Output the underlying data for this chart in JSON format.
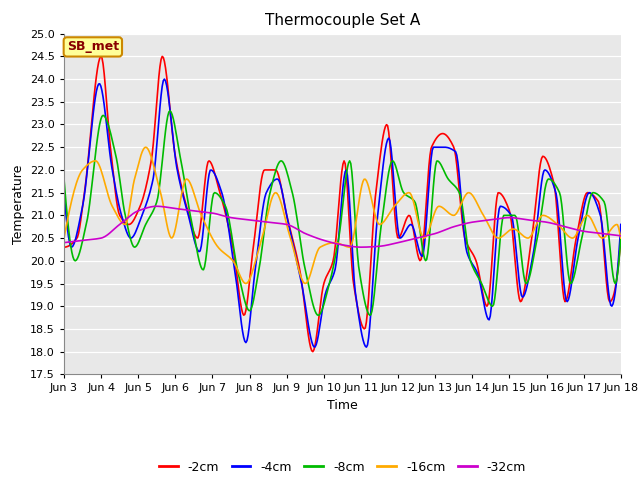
{
  "title": "Thermocouple Set A",
  "xlabel": "Time",
  "ylabel": "Temperature",
  "xlim": [
    0,
    15
  ],
  "ylim": [
    17.5,
    25.0
  ],
  "yticks": [
    17.5,
    18.0,
    18.5,
    19.0,
    19.5,
    20.0,
    20.5,
    21.0,
    21.5,
    22.0,
    22.5,
    23.0,
    23.5,
    24.0,
    24.5,
    25.0
  ],
  "xtick_labels": [
    "Jun 3",
    "Jun 4",
    "Jun 5",
    "Jun 6",
    "Jun 7",
    "Jun 8",
    "Jun 9",
    "Jun 10",
    "Jun 11",
    "Jun 12",
    "Jun 13",
    "Jun 14",
    "Jun 15",
    "Jun 16",
    "Jun 17",
    "Jun 18"
  ],
  "xtick_positions": [
    0,
    1,
    2,
    3,
    4,
    5,
    6,
    7,
    8,
    9,
    10,
    11,
    12,
    13,
    14,
    15
  ],
  "series_labels": [
    "-2cm",
    "-4cm",
    "-8cm",
    "-16cm",
    "-32cm"
  ],
  "series_colors": [
    "#ff0000",
    "#0000ff",
    "#00bb00",
    "#ffaa00",
    "#cc00cc"
  ],
  "line_width": 1.2,
  "plot_bg_color": "#e8e8e8",
  "annotation_text": "SB_met",
  "annotation_bg": "#ffff99",
  "annotation_border": "#cc8800",
  "annotation_text_color": "#880000",
  "legend_fontsize": 9,
  "title_fontsize": 11,
  "tick_fontsize": 8,
  "ylabel_fontsize": 9,
  "xlabel_fontsize": 9,
  "tc2_x": [
    0.0,
    0.35,
    0.55,
    1.0,
    1.25,
    1.5,
    1.75,
    2.05,
    2.35,
    2.65,
    3.0,
    3.3,
    3.6,
    3.9,
    4.2,
    4.55,
    4.85,
    5.1,
    5.4,
    5.7,
    6.0,
    6.35,
    6.7,
    7.0,
    7.25,
    7.55,
    7.8,
    8.1,
    8.4,
    8.7,
    9.0,
    9.3,
    9.6,
    9.9,
    10.2,
    10.5,
    10.8,
    11.1,
    11.4,
    11.7,
    12.0,
    12.3,
    12.6,
    12.9,
    13.2,
    13.5,
    13.8,
    14.1,
    14.4,
    14.7,
    15.0
  ],
  "tc2_y": [
    20.3,
    20.5,
    21.5,
    24.5,
    22.5,
    21.0,
    20.8,
    21.2,
    22.2,
    24.5,
    22.3,
    21.2,
    20.5,
    22.2,
    21.5,
    20.3,
    18.8,
    20.3,
    22.0,
    22.0,
    21.0,
    19.8,
    18.0,
    19.5,
    20.0,
    22.2,
    19.5,
    18.5,
    21.5,
    23.0,
    20.5,
    21.0,
    20.0,
    22.5,
    22.8,
    22.5,
    20.5,
    20.0,
    19.0,
    21.5,
    21.1,
    19.1,
    20.5,
    22.3,
    21.7,
    19.1,
    20.5,
    21.5,
    21.3,
    19.1,
    20.5
  ],
  "tc4_x": [
    0.0,
    0.2,
    0.5,
    0.95,
    1.3,
    1.55,
    1.8,
    2.1,
    2.4,
    2.7,
    3.05,
    3.35,
    3.65,
    3.95,
    4.25,
    4.6,
    4.9,
    5.15,
    5.45,
    5.75,
    6.05,
    6.4,
    6.75,
    7.05,
    7.3,
    7.6,
    7.85,
    8.15,
    8.45,
    8.75,
    9.05,
    9.35,
    9.65,
    9.95,
    10.25,
    10.55,
    10.85,
    11.15,
    11.45,
    11.75,
    12.05,
    12.35,
    12.65,
    12.95,
    13.25,
    13.55,
    13.85,
    14.15,
    14.45,
    14.75,
    15.0
  ],
  "tc4_y": [
    21.5,
    20.3,
    21.2,
    23.9,
    22.0,
    21.0,
    20.5,
    21.0,
    21.8,
    24.0,
    22.0,
    21.0,
    20.2,
    22.0,
    21.5,
    19.8,
    18.2,
    19.8,
    21.5,
    21.8,
    20.8,
    19.5,
    18.1,
    19.3,
    19.8,
    22.0,
    19.3,
    18.1,
    21.0,
    22.7,
    20.5,
    20.8,
    20.1,
    22.5,
    22.5,
    22.4,
    20.2,
    19.7,
    18.7,
    21.2,
    21.0,
    19.2,
    20.2,
    22.0,
    21.5,
    19.1,
    20.5,
    21.5,
    21.0,
    19.0,
    20.8
  ],
  "tc8_x": [
    0.0,
    0.3,
    0.6,
    1.05,
    1.4,
    1.65,
    1.9,
    2.2,
    2.5,
    2.85,
    3.15,
    3.45,
    3.75,
    4.05,
    4.35,
    4.7,
    5.0,
    5.25,
    5.55,
    5.85,
    6.15,
    6.5,
    6.85,
    7.15,
    7.4,
    7.7,
    7.95,
    8.25,
    8.55,
    8.85,
    9.15,
    9.45,
    9.75,
    10.05,
    10.35,
    10.65,
    10.95,
    11.25,
    11.55,
    11.85,
    12.15,
    12.45,
    12.75,
    13.05,
    13.35,
    13.65,
    13.95,
    14.25,
    14.55,
    14.85,
    15.0
  ],
  "tc8_y": [
    21.8,
    20.0,
    20.8,
    23.2,
    22.3,
    21.0,
    20.3,
    20.8,
    21.3,
    23.3,
    22.2,
    20.8,
    19.8,
    21.5,
    21.2,
    19.7,
    18.9,
    19.8,
    21.5,
    22.2,
    21.5,
    19.8,
    18.8,
    19.5,
    20.5,
    22.2,
    19.8,
    18.8,
    20.8,
    22.2,
    21.5,
    21.3,
    20.0,
    22.2,
    21.8,
    21.5,
    20.0,
    19.5,
    19.0,
    21.0,
    21.0,
    19.5,
    20.5,
    21.8,
    21.5,
    19.5,
    20.5,
    21.5,
    21.3,
    19.5,
    20.5
  ],
  "tc16_x": [
    0.0,
    0.5,
    0.85,
    1.3,
    1.65,
    1.9,
    2.2,
    2.6,
    2.9,
    3.3,
    3.7,
    4.15,
    4.55,
    4.9,
    5.3,
    5.7,
    6.1,
    6.5,
    6.9,
    7.3,
    7.7,
    8.1,
    8.5,
    8.9,
    9.3,
    9.7,
    10.1,
    10.5,
    10.9,
    11.3,
    11.7,
    12.1,
    12.5,
    12.9,
    13.3,
    13.7,
    14.1,
    14.5,
    14.9,
    15.0
  ],
  "tc16_y": [
    20.5,
    22.0,
    22.2,
    21.2,
    20.8,
    21.8,
    22.5,
    21.5,
    20.5,
    21.8,
    21.0,
    20.3,
    20.0,
    19.5,
    20.4,
    21.5,
    20.5,
    19.5,
    20.3,
    20.4,
    20.3,
    21.8,
    20.8,
    21.2,
    21.5,
    20.5,
    21.2,
    21.0,
    21.5,
    21.0,
    20.5,
    20.7,
    20.5,
    21.0,
    20.8,
    20.5,
    21.0,
    20.5,
    20.8,
    20.5
  ],
  "tc32_x": [
    0.0,
    0.5,
    1.0,
    1.5,
    2.0,
    2.5,
    3.0,
    3.5,
    4.0,
    4.5,
    5.0,
    5.5,
    6.0,
    6.5,
    7.0,
    7.5,
    8.0,
    8.5,
    9.0,
    9.5,
    10.0,
    10.5,
    11.0,
    11.5,
    12.0,
    12.5,
    13.0,
    13.5,
    14.0,
    14.5,
    15.0
  ],
  "tc32_y": [
    20.4,
    20.45,
    20.5,
    20.8,
    21.1,
    21.2,
    21.15,
    21.1,
    21.05,
    20.95,
    20.9,
    20.85,
    20.8,
    20.6,
    20.45,
    20.35,
    20.3,
    20.32,
    20.4,
    20.5,
    20.6,
    20.75,
    20.85,
    20.9,
    20.95,
    20.9,
    20.85,
    20.75,
    20.65,
    20.6,
    20.55
  ]
}
